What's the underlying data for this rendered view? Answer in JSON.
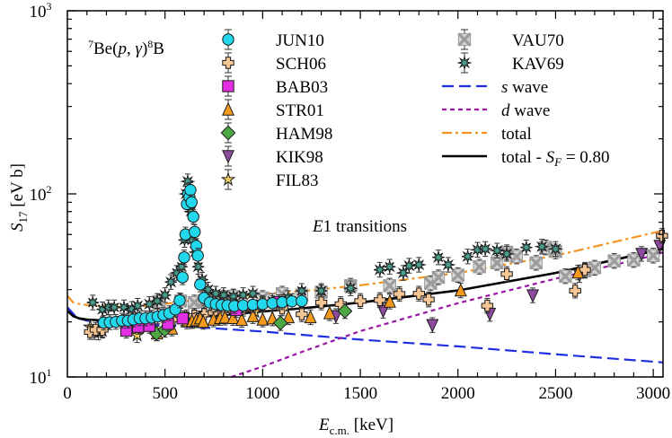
{
  "chart_data": {
    "type": "scatter",
    "title": "",
    "panel_label": {
      "prefix": "7",
      "base": "Be(",
      "p": "p",
      "comma": ", ",
      "gamma": "γ",
      "close": ")",
      "sup": "8",
      "tail": "B"
    },
    "annotation": {
      "e": "E",
      "rest": "1 transitions"
    },
    "xlabel": {
      "main": "E",
      "sub": "c.m.",
      "unit": " [keV]"
    },
    "ylabel": {
      "main": "S",
      "sub": "17",
      "unit": " [eV b]"
    },
    "x_scale": "linear",
    "y_scale": "log",
    "xlim": [
      0,
      3050
    ],
    "ylim": [
      10,
      1000
    ],
    "x_ticks": [
      0,
      500,
      1000,
      1500,
      2000,
      2500,
      3000
    ],
    "x_tick_labels": [
      "0",
      "500",
      "1000",
      "1500",
      "2000",
      "2500",
      "3000"
    ],
    "y_ticks": [
      10,
      100,
      1000
    ],
    "y_tick_labels": [
      {
        "base": "10",
        "exp": "1"
      },
      {
        "base": "10",
        "exp": "2"
      },
      {
        "base": "10",
        "exp": "3"
      }
    ],
    "colors": {
      "JUN10": "#22d8ec",
      "SCH06": "#f6c594",
      "BAB03": "#e32fe3",
      "STR01": "#f59a1c",
      "HAM98": "#4ca844",
      "KIK98": "#8e4a9e",
      "FIL83": "#f3d060",
      "VAU70": "#9c9c9c",
      "KAV69": "#4a9e8e",
      "s_wave": "#1f2fe0",
      "d_wave": "#9a16a6",
      "total": "#f39421",
      "fit": "#000000"
    },
    "series": [
      {
        "name": "JUN10",
        "marker": "circle",
        "points": [
          [
            186,
            19.8
          ],
          [
            217,
            19.9
          ],
          [
            248,
            20.0
          ],
          [
            280,
            20.3
          ],
          [
            310,
            20.3
          ],
          [
            338,
            20.6
          ],
          [
            370,
            20.9
          ],
          [
            400,
            20.9
          ],
          [
            432,
            21.1
          ],
          [
            462,
            21.4
          ],
          [
            492,
            21.8
          ],
          [
            522,
            22.3
          ],
          [
            553,
            23.4
          ],
          [
            575,
            26.2
          ],
          [
            590,
            35.0
          ],
          [
            598,
            45.0
          ],
          [
            605,
            60.0
          ],
          [
            612,
            88.0
          ],
          [
            618,
            100.0
          ],
          [
            625,
            96.0
          ],
          [
            630,
            105.0
          ],
          [
            636,
            90.0
          ],
          [
            645,
            75.0
          ],
          [
            652,
            62.0
          ],
          [
            660,
            52.0
          ],
          [
            668,
            46.0
          ],
          [
            680,
            32.0
          ],
          [
            700,
            27.0
          ],
          [
            730,
            25.5
          ],
          [
            760,
            25.0
          ],
          [
            790,
            24.7
          ],
          [
            820,
            24.6
          ],
          [
            855,
            24.4
          ],
          [
            900,
            24.6
          ],
          [
            950,
            24.8
          ],
          [
            1000,
            25.0
          ],
          [
            1050,
            25.3
          ],
          [
            1100,
            25.6
          ],
          [
            1150,
            25.9
          ],
          [
            1200,
            26.0
          ]
        ]
      },
      {
        "name": "SCH06",
        "marker": "plus",
        "points": [
          [
            116,
            17.6
          ],
          [
            145,
            18.1
          ],
          [
            180,
            18.1
          ],
          [
            320,
            18.7
          ],
          [
            540,
            20.6
          ],
          [
            610,
            21.2
          ],
          [
            650,
            21.6
          ],
          [
            700,
            22.0
          ],
          [
            750,
            22.4
          ],
          [
            800,
            22.6
          ],
          [
            850,
            23.2
          ],
          [
            900,
            23.6
          ],
          [
            950,
            24.0
          ],
          [
            1000,
            25.4
          ],
          [
            1100,
            23.7
          ],
          [
            1200,
            22.0
          ],
          [
            1300,
            25.5
          ],
          [
            1400,
            25.0
          ],
          [
            1500,
            26.0
          ],
          [
            1600,
            26.3
          ],
          [
            1700,
            28.4
          ],
          [
            1800,
            28.5
          ],
          [
            1850,
            26.5
          ],
          [
            2150,
            24.5
          ],
          [
            2250,
            36.5
          ],
          [
            2600,
            29.6
          ],
          [
            2650,
            38.5
          ],
          [
            3045,
            59.0
          ]
        ]
      },
      {
        "name": "BAB03",
        "marker": "square",
        "points": [
          [
            302,
            17.9
          ],
          [
            362,
            18.8
          ],
          [
            420,
            19.0
          ],
          [
            515,
            19.5
          ],
          [
            590,
            20.9
          ],
          [
            865,
            23.2
          ],
          [
            1085,
            25.6
          ]
        ]
      },
      {
        "name": "STR01",
        "marker": "triangle-up",
        "points": [
          [
            459,
            17.3
          ],
          [
            535,
            18.4
          ],
          [
            612,
            20.1
          ],
          [
            638,
            20.2
          ],
          [
            660,
            20.4
          ],
          [
            680,
            20.9
          ],
          [
            696,
            20.0
          ],
          [
            748,
            20.6
          ],
          [
            782,
            21.0
          ],
          [
            807,
            21.1
          ],
          [
            848,
            21.0
          ],
          [
            893,
            20.5
          ],
          [
            950,
            21.5
          ],
          [
            1000,
            20.6
          ],
          [
            1050,
            20.9
          ],
          [
            1132,
            21.2
          ],
          [
            1245,
            21.2
          ],
          [
            1343,
            22.3
          ],
          [
            1651,
            25.8
          ],
          [
            2014,
            29.7
          ],
          [
            2615,
            37.2
          ]
        ]
      },
      {
        "name": "HAM98",
        "marker": "diamond",
        "points": [
          [
            456,
            17.3
          ],
          [
            499,
            18.1
          ],
          [
            1091,
            19.7
          ],
          [
            1421,
            22.9
          ]
        ]
      },
      {
        "name": "KIK98",
        "marker": "triangle-down",
        "points": [
          [
            1375,
            21.5
          ],
          [
            1617,
            23.0
          ],
          [
            1869,
            19.2
          ],
          [
            2163,
            22.1
          ],
          [
            2383,
            27.9
          ],
          [
            2622,
            36.0
          ],
          [
            2940,
            47.0
          ],
          [
            3033,
            52.0
          ]
        ]
      },
      {
        "name": "FIL83",
        "marker": "star",
        "points": [
          [
            117,
            18.7
          ],
          [
            137,
            17.6
          ],
          [
            159,
            17.5
          ],
          [
            179,
            17.9
          ],
          [
            357,
            16.9
          ],
          [
            960,
            22.7
          ]
        ]
      },
      {
        "name": "VAU70",
        "marker": "x-box",
        "points": [
          [
            470,
            25.8
          ],
          [
            580,
            26.0
          ],
          [
            650,
            25.5
          ],
          [
            700,
            26.0
          ],
          [
            750,
            26.5
          ],
          [
            800,
            27.0
          ],
          [
            850,
            27.5
          ],
          [
            1000,
            27.0
          ],
          [
            1100,
            28.5
          ],
          [
            1200,
            28.0
          ],
          [
            1300,
            29.0
          ],
          [
            1450,
            31.5
          ],
          [
            1650,
            31.5
          ],
          [
            1860,
            32.5
          ],
          [
            1900,
            35.0
          ],
          [
            2000,
            36.0
          ],
          [
            2110,
            40.0
          ],
          [
            2200,
            42.0
          ],
          [
            2250,
            48.0
          ],
          [
            2300,
            45.5
          ],
          [
            2400,
            42.0
          ],
          [
            2450,
            51.0
          ],
          [
            2500,
            48.5
          ],
          [
            2550,
            35.5
          ],
          [
            2650,
            38.0
          ],
          [
            2700,
            39.5
          ],
          [
            2800,
            43.0
          ],
          [
            2900,
            43.5
          ],
          [
            3000,
            46.0
          ]
        ]
      },
      {
        "name": "KAV69",
        "marker": "asterisk",
        "points": [
          [
            130,
            25.5
          ],
          [
            180,
            23.4
          ],
          [
            210,
            24.0
          ],
          [
            240,
            24.0
          ],
          [
            290,
            24.0
          ],
          [
            330,
            23.5
          ],
          [
            360,
            24.5
          ],
          [
            420,
            25.0
          ],
          [
            460,
            26.0
          ],
          [
            500,
            28.0
          ],
          [
            530,
            33.0
          ],
          [
            560,
            37.0
          ],
          [
            585,
            40.0
          ],
          [
            600,
            56.0
          ],
          [
            608,
            100.0
          ],
          [
            616,
            117.0
          ],
          [
            624,
            105.0
          ],
          [
            632,
            80.0
          ],
          [
            640,
            56.0
          ],
          [
            655,
            48.0
          ],
          [
            670,
            40.0
          ],
          [
            690,
            34.0
          ],
          [
            720,
            30.0
          ],
          [
            760,
            28.5
          ],
          [
            800,
            28.0
          ],
          [
            850,
            27.5
          ],
          [
            900,
            28.0
          ],
          [
            950,
            28.5
          ],
          [
            1050,
            26.0
          ],
          [
            1130,
            27.0
          ],
          [
            1200,
            29.5
          ],
          [
            1300,
            29.5
          ],
          [
            1450,
            30.5
          ],
          [
            1600,
            38.5
          ],
          [
            1650,
            40.0
          ],
          [
            1720,
            37.0
          ],
          [
            1750,
            40.5
          ],
          [
            1800,
            41.0
          ],
          [
            1900,
            45.0
          ],
          [
            1950,
            41.0
          ],
          [
            2050,
            45.5
          ],
          [
            2100,
            49.5
          ],
          [
            2140,
            50.0
          ],
          [
            2200,
            49.0
          ],
          [
            2250,
            47.0
          ],
          [
            2350,
            51.0
          ],
          [
            2430,
            51.5
          ],
          [
            2500,
            50.0
          ]
        ]
      }
    ],
    "curves": [
      {
        "name": "s wave",
        "style": "dashed",
        "points": [
          [
            0,
            24.0
          ],
          [
            50,
            21.0
          ],
          [
            100,
            20.3
          ],
          [
            200,
            20.0
          ],
          [
            400,
            19.5
          ],
          [
            600,
            18.9
          ],
          [
            800,
            18.3
          ],
          [
            1000,
            17.7
          ],
          [
            1200,
            17.0
          ],
          [
            1500,
            16.0
          ],
          [
            2000,
            14.7
          ],
          [
            2500,
            13.3
          ],
          [
            3050,
            12.0
          ]
        ]
      },
      {
        "name": "d wave",
        "style": "dotted",
        "points": [
          [
            840,
            10.0
          ],
          [
            1000,
            11.4
          ],
          [
            1200,
            13.7
          ],
          [
            1500,
            17.8
          ],
          [
            2000,
            25.3
          ],
          [
            2500,
            34.4
          ],
          [
            3000,
            46.0
          ],
          [
            3050,
            48.0
          ]
        ]
      },
      {
        "name": "total",
        "style": "dashdot",
        "points": [
          [
            0,
            27.8
          ],
          [
            30,
            25.5
          ],
          [
            50,
            25.2
          ],
          [
            100,
            24.7
          ],
          [
            200,
            24.3
          ],
          [
            300,
            24.2
          ],
          [
            400,
            24.5
          ],
          [
            500,
            25.1
          ],
          [
            600,
            25.9
          ],
          [
            800,
            27.1
          ],
          [
            1000,
            28.4
          ],
          [
            1200,
            29.4
          ],
          [
            1500,
            31.7
          ],
          [
            2000,
            37.0
          ],
          [
            2500,
            46.0
          ],
          [
            3050,
            63.0
          ]
        ]
      },
      {
        "name": "total - S_F = 0.80",
        "style": "solid",
        "points": [
          [
            0,
            23.0
          ],
          [
            30,
            21.5
          ],
          [
            60,
            20.9
          ],
          [
            100,
            20.6
          ],
          [
            200,
            20.3
          ],
          [
            300,
            20.2
          ],
          [
            400,
            20.3
          ],
          [
            500,
            20.6
          ],
          [
            600,
            21.0
          ],
          [
            800,
            21.8
          ],
          [
            1000,
            22.8
          ],
          [
            1200,
            23.7
          ],
          [
            1500,
            25.5
          ],
          [
            2000,
            29.7
          ],
          [
            2500,
            37.0
          ],
          [
            3050,
            50.0
          ]
        ]
      }
    ],
    "legend_left": [
      {
        "name": "JUN10",
        "marker": "circle"
      },
      {
        "name": "SCH06",
        "marker": "plus"
      },
      {
        "name": "BAB03",
        "marker": "square"
      },
      {
        "name": "STR01",
        "marker": "triangle-up"
      },
      {
        "name": "HAM98",
        "marker": "diamond"
      },
      {
        "name": "KIK98",
        "marker": "triangle-down"
      },
      {
        "name": "FIL83",
        "marker": "star"
      }
    ],
    "legend_right": [
      {
        "name": "VAU70",
        "kind": "marker",
        "marker": "x-box"
      },
      {
        "name": "KAV69",
        "kind": "marker",
        "marker": "asterisk"
      },
      {
        "kind": "line",
        "style": "dashed",
        "color_key": "s_wave",
        "italic": "s",
        "rest": " wave"
      },
      {
        "kind": "line",
        "style": "dotted",
        "color_key": "d_wave",
        "italic": "d",
        "rest": " wave"
      },
      {
        "kind": "line",
        "style": "dashdot",
        "color_key": "total",
        "italic": "",
        "rest": "total"
      },
      {
        "kind": "line",
        "style": "solid",
        "color_key": "fit",
        "italic": "",
        "rest": "total - ",
        "sym": "S",
        "sym_sub": "F",
        "suffix": " = 0.80"
      }
    ]
  }
}
